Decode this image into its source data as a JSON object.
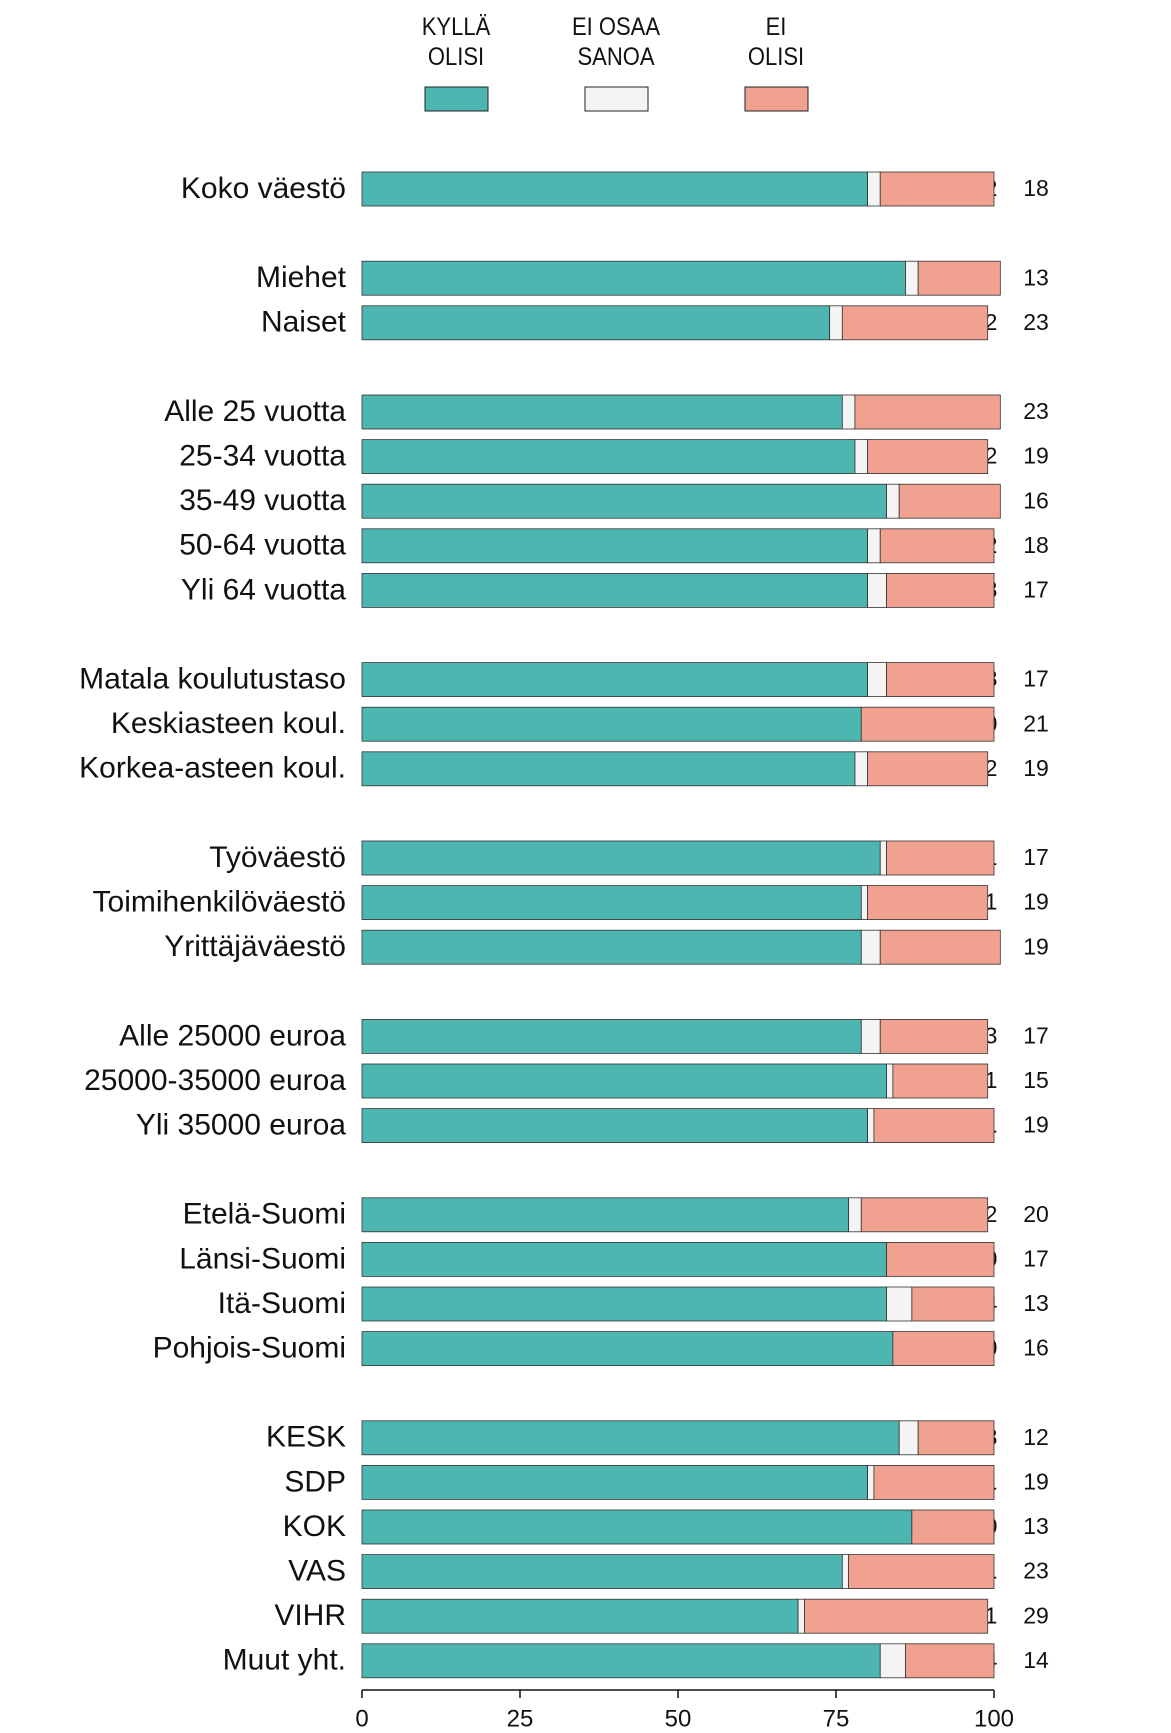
{
  "chart_data": {
    "type": "stacked_bar_horizontal",
    "categories": [
      "Koko väestö",
      "Miehet",
      "Naiset",
      "Alle 25 vuotta",
      "25-34 vuotta",
      "35-49 vuotta",
      "50-64 vuotta",
      "Yli 64 vuotta",
      "Matala koulutustaso",
      "Keskiasteen koul.",
      "Korkea-asteen koul.",
      "Työväestö",
      "Toimihenkilöväestö",
      "Yrittäjäväestö",
      "Alle 25000 euroa",
      "25000-35000 euroa",
      "Yli 35000 euroa",
      "Etelä-Suomi",
      "Länsi-Suomi",
      "Itä-Suomi",
      "Pohjois-Suomi",
      "KESK",
      "SDP",
      "KOK",
      "VAS",
      "VIHR",
      "Muut yht."
    ],
    "series": [
      {
        "name": "KYLLÄ OLISI",
        "color": "#4db6b1",
        "values": [
          80,
          86,
          74,
          76,
          78,
          83,
          80,
          80,
          80,
          79,
          78,
          82,
          79,
          79,
          79,
          83,
          80,
          77,
          83,
          83,
          84,
          85,
          80,
          87,
          76,
          69,
          82
        ]
      },
      {
        "name": "EI OSAA SANOA",
        "color": "#f4f4f4",
        "values": [
          2,
          2,
          2,
          2,
          2,
          2,
          2,
          3,
          3,
          0,
          2,
          1,
          1,
          3,
          3,
          1,
          1,
          2,
          0,
          4,
          0,
          3,
          1,
          0,
          1,
          1,
          4
        ]
      },
      {
        "name": "EI OLISI",
        "color": "#f0a18f",
        "values": [
          18,
          13,
          23,
          23,
          19,
          16,
          18,
          17,
          17,
          21,
          19,
          17,
          19,
          19,
          17,
          15,
          19,
          20,
          17,
          13,
          16,
          12,
          19,
          13,
          23,
          29,
          14
        ]
      }
    ],
    "xlim": [
      0,
      100
    ],
    "xticks": [
      0,
      25,
      50,
      75,
      100
    ]
  }
}
